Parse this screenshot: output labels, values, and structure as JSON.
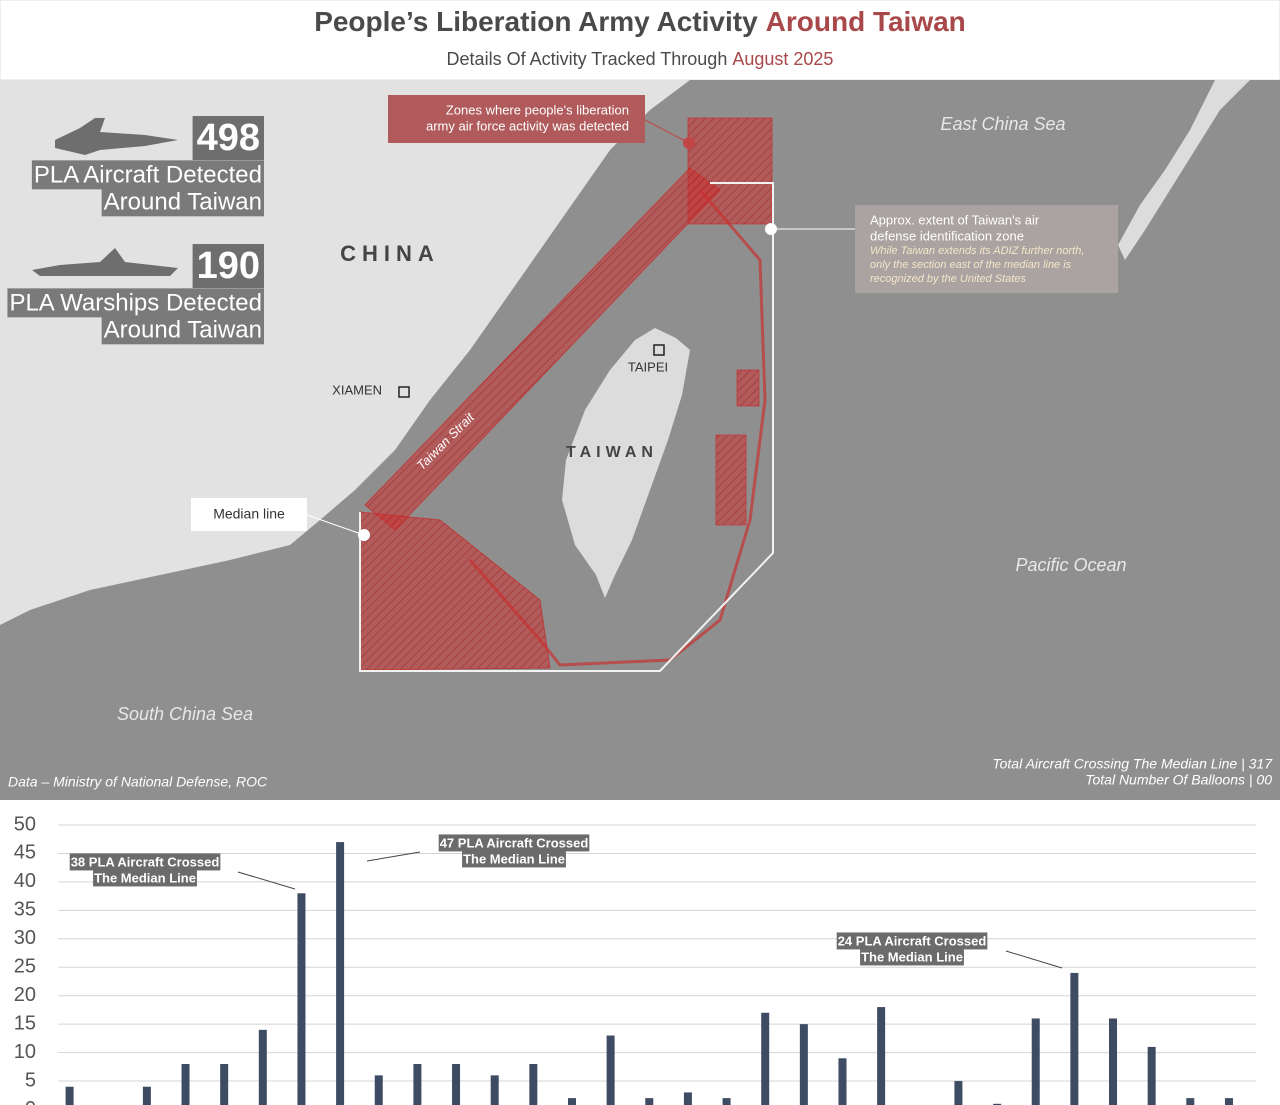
{
  "header": {
    "title_main": "People’s Liberation Army Activity",
    "title_highlight": "Around Taiwan",
    "subtitle_main": "Details Of Activity Tracked Through",
    "subtitle_highlight": "August 2025"
  },
  "map": {
    "stats": [
      {
        "value": 498,
        "label_line1": "PLA Aircraft Detected",
        "label_line2": "Around Taiwan"
      },
      {
        "value": 190,
        "label_line1": "PLA Warships Detected",
        "label_line2": "Around Taiwan"
      }
    ],
    "place_labels": {
      "china": "CHINA",
      "taiwan": "TAIWAN",
      "xiamen": "XIAMEN",
      "taipei": "TAIPEI",
      "strait": "Taiwan Strait",
      "east_china_sea": "East China Sea",
      "pacific_ocean": "Pacific Ocean",
      "south_china_sea": "South China Sea"
    },
    "zone_callout": [
      "Zones where people's liberation",
      "army air force activity was detected"
    ],
    "adiz_callout": {
      "title": [
        "Approx. extent of Taiwan's air",
        "defense identification zone"
      ],
      "note": [
        "While Taiwan extends its ADIZ further north,",
        "only the section east of the median line is",
        "recognized by the United States"
      ]
    },
    "median_label": "Median line",
    "footer_left": "Data – Ministry of National Defense, ROC",
    "footer_right": [
      "Total Aircraft Crossing The Median Line | 317",
      "Total Number Of Balloons | 00"
    ]
  },
  "chart_data": {
    "type": "bar",
    "color": "#3d4b63",
    "grid": true,
    "categories": [
      null,
      null,
      null,
      null,
      null,
      null,
      null,
      null,
      null,
      null,
      null,
      null,
      null,
      null,
      null,
      null,
      null,
      null,
      null,
      null,
      null,
      null,
      null,
      null,
      null,
      null,
      null,
      null,
      null,
      null,
      null
    ],
    "values": [
      4,
      0,
      4,
      8,
      8,
      14,
      38,
      47,
      6,
      8,
      8,
      6,
      8,
      2,
      13,
      2,
      3,
      2,
      17,
      15,
      9,
      18,
      0,
      5,
      1,
      16,
      24,
      16,
      11,
      2,
      2
    ],
    "ylim": [
      0,
      50
    ],
    "yticks": [
      0,
      5,
      10,
      15,
      20,
      25,
      30,
      35,
      40,
      45,
      50
    ],
    "annotations": [
      [
        "38 PLA Aircraft Crossed",
        "The Median Line"
      ],
      [
        "47 PLA Aircraft Crossed",
        "The Median Line"
      ],
      [
        "24 PLA Aircraft Crossed",
        "The Median Line"
      ]
    ]
  }
}
